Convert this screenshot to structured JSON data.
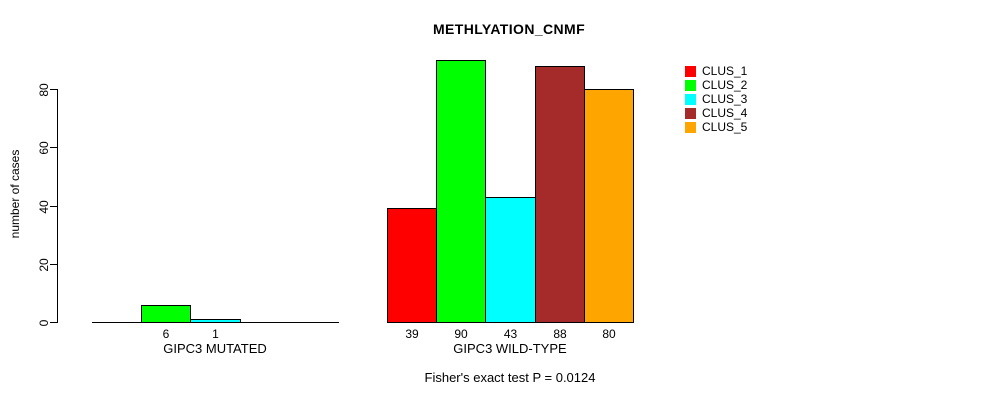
{
  "chart_data": {
    "type": "bar",
    "title": "METHLYATION_CNMF",
    "ylabel": "number of cases",
    "ylim": [
      0,
      90
    ],
    "yticks": [
      0,
      20,
      40,
      60,
      80
    ],
    "grid": false,
    "legend_position": "right",
    "series": [
      {
        "name": "CLUS_1",
        "color": "#FF0000"
      },
      {
        "name": "CLUS_2",
        "color": "#00FF00"
      },
      {
        "name": "CLUS_3",
        "color": "#00FFFF"
      },
      {
        "name": "CLUS_4",
        "color": "#A52A2A"
      },
      {
        "name": "CLUS_5",
        "color": "#FFA500"
      }
    ],
    "groups": [
      {
        "label": "GIPC3 MUTATED",
        "values": [
          0,
          6,
          1,
          0,
          0
        ],
        "value_labels": [
          "",
          "6",
          "1",
          "",
          ""
        ]
      },
      {
        "label": "GIPC3 WILD-TYPE",
        "values": [
          39,
          90,
          43,
          88,
          80
        ],
        "value_labels": [
          "39",
          "90",
          "43",
          "88",
          "80"
        ]
      }
    ],
    "annotation": "Fisher's exact test P = 0.0124"
  }
}
